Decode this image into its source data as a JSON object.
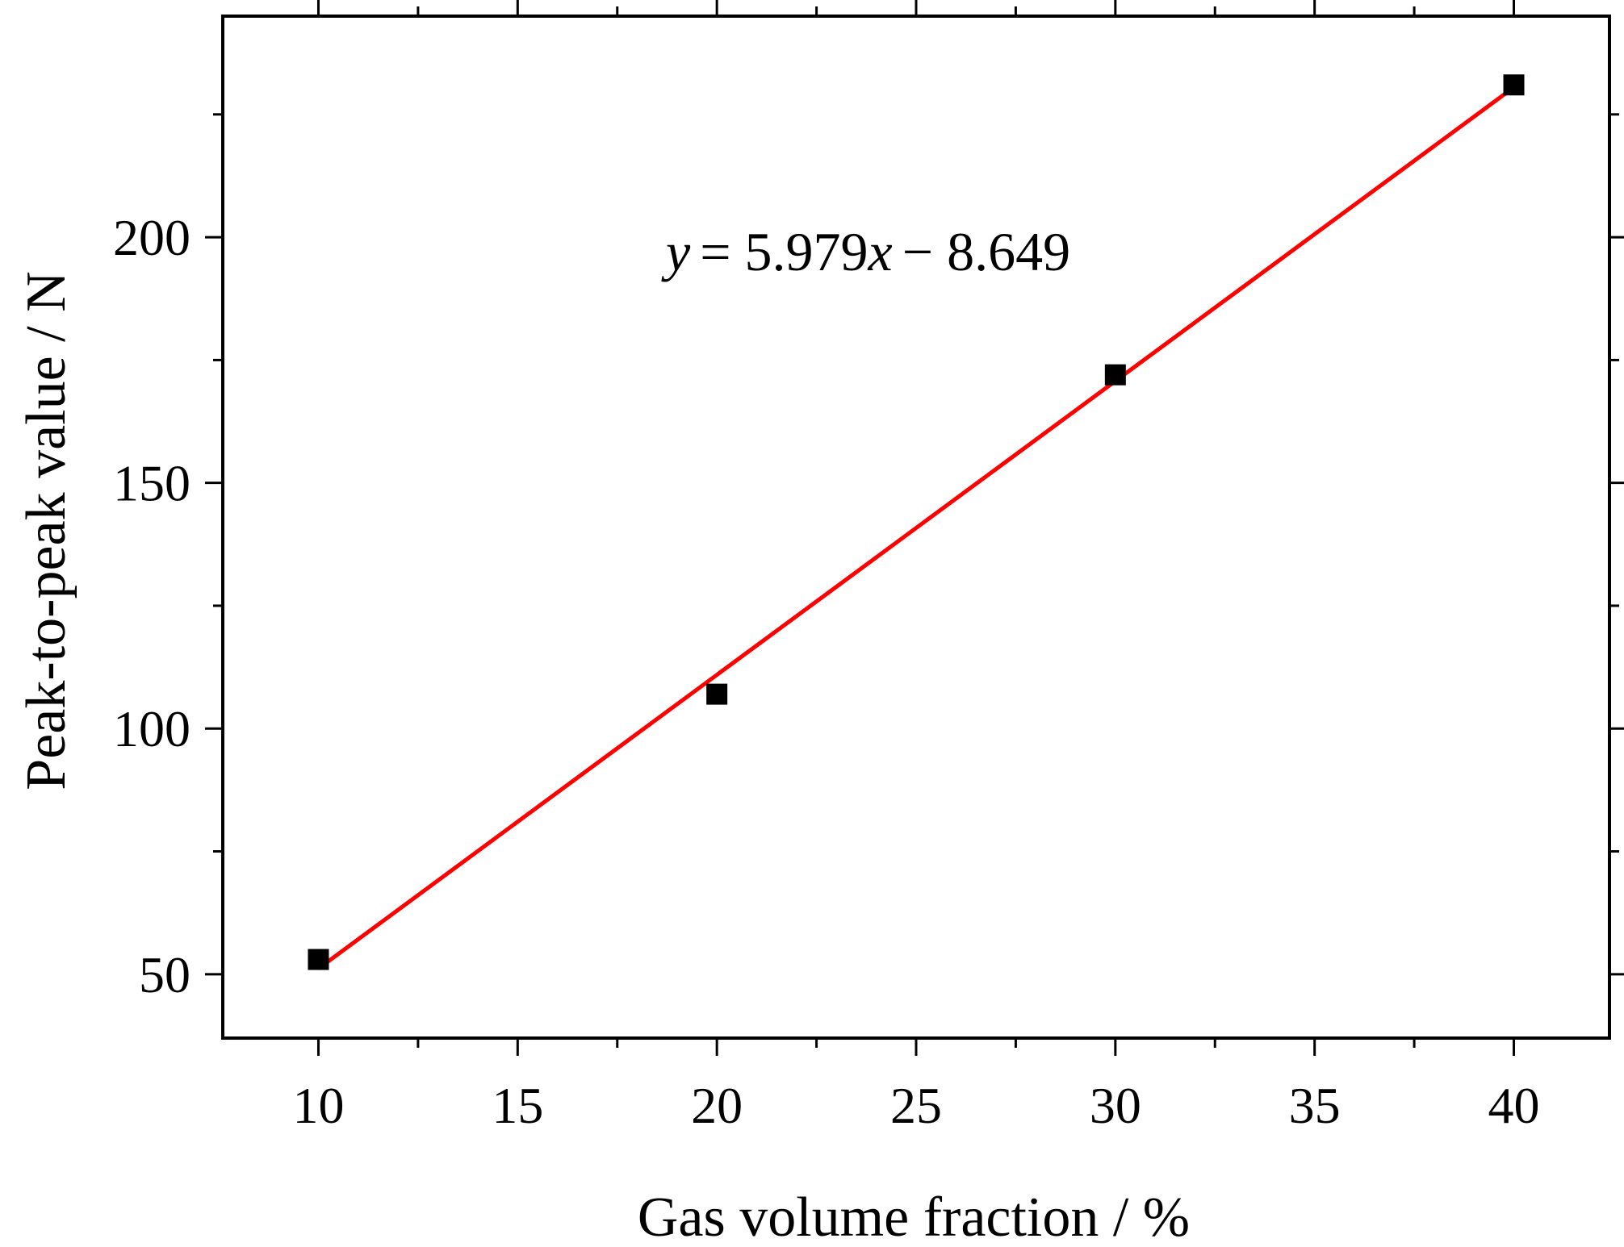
{
  "chart_data": {
    "type": "scatter",
    "title": "",
    "xlabel": "Gas volume fraction / %",
    "ylabel": "Peak-to-peak value / N",
    "xlim": [
      7.6,
      42.4
    ],
    "ylim": [
      37,
      245
    ],
    "xticks": [
      10,
      15,
      20,
      25,
      30,
      35,
      40
    ],
    "xtick_labels": [
      "10",
      "15",
      "20",
      "25",
      "30",
      "35",
      "40"
    ],
    "yticks": [
      50,
      100,
      150,
      200
    ],
    "ytick_labels": [
      "50",
      "100",
      "150",
      "200"
    ],
    "x_minor_step": 2.5,
    "y_minor_step": 25,
    "grid": false,
    "colors": {
      "points": "#000000",
      "fit": "#ff0000",
      "axes": "#000000"
    },
    "series": [
      {
        "kind": "points",
        "marker": "square",
        "x": [
          10,
          20,
          30,
          40
        ],
        "y": [
          53,
          107,
          172,
          231
        ]
      }
    ],
    "fit": {
      "slope": 5.979,
      "intercept": -8.649,
      "x_range": [
        10,
        40
      ],
      "equation": {
        "y": "y",
        "eq": "= 5.979",
        "x": "x",
        "rest": "− 8.649"
      }
    }
  }
}
